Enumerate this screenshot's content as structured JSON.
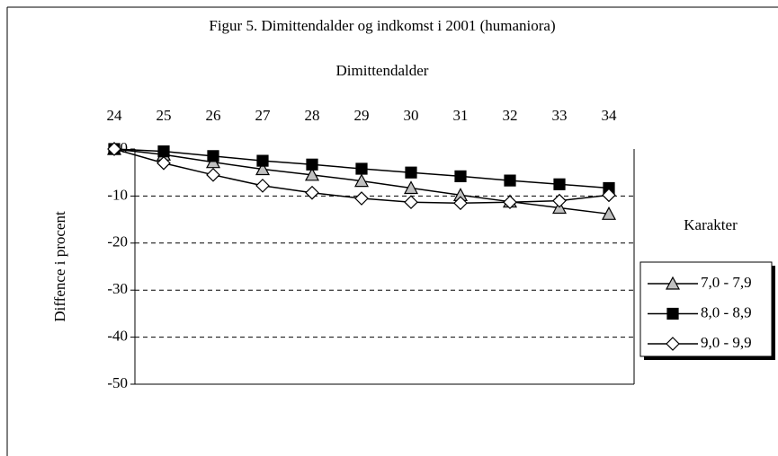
{
  "chart_data": {
    "type": "line",
    "title": "Figur 5. Dimittendalder og indkomst i 2001 (humaniora)",
    "x_label": "Dimittendalder",
    "y_label": "Diffence i procent",
    "legend_title": "Karakter",
    "legend_position": "right",
    "x": [
      24,
      25,
      26,
      27,
      28,
      29,
      30,
      31,
      32,
      33,
      34
    ],
    "xlim": [
      24,
      34
    ],
    "xticks": [
      24,
      25,
      26,
      27,
      28,
      29,
      30,
      31,
      32,
      33,
      34
    ],
    "ylim": [
      -50,
      0
    ],
    "yticks": [
      0,
      -10,
      -20,
      -30,
      -40,
      -50
    ],
    "grid": true,
    "series": [
      {
        "name": "7,0 - 7,9",
        "color": "#c0c0c0",
        "marker": "triangle",
        "values": [
          0,
          -1.2,
          -2.8,
          -4.3,
          -5.5,
          -6.8,
          -8.3,
          -9.8,
          -11.2,
          -12.5,
          -13.8
        ]
      },
      {
        "name": "8,0 - 8,9",
        "color": "#000000",
        "marker": "square",
        "values": [
          0,
          -0.5,
          -1.5,
          -2.5,
          -3.3,
          -4.2,
          -5.0,
          -5.8,
          -6.7,
          -7.5,
          -8.3
        ]
      },
      {
        "name": "9,0 - 9,9",
        "color": "#ffffff",
        "marker": "diamond",
        "values": [
          0,
          -3.0,
          -5.5,
          -7.8,
          -9.3,
          -10.5,
          -11.3,
          -11.5,
          -11.3,
          -11.0,
          -9.8
        ]
      }
    ]
  }
}
